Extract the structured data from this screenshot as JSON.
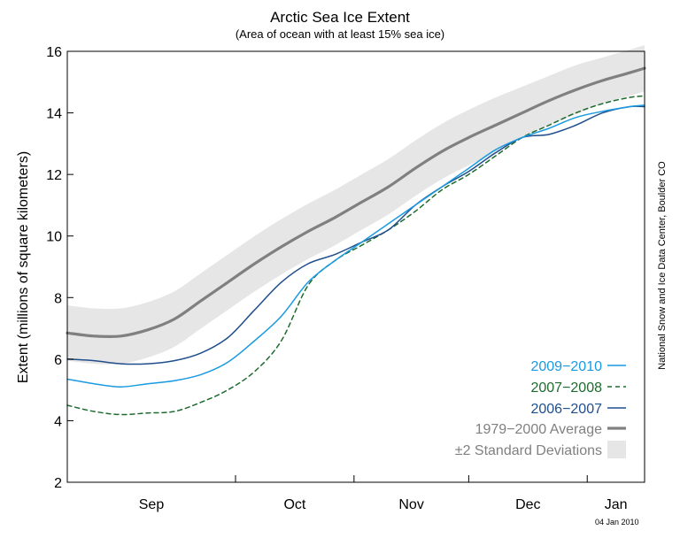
{
  "chart_data": {
    "type": "line",
    "title": "Arctic Sea Ice Extent",
    "subtitle": "(Area of ocean with at least 15% sea ice)",
    "xlabel": "",
    "ylabel": "Extent (millions of square kilometers)",
    "x_range": [
      "Aug 18",
      "Jan 16"
    ],
    "ylim": [
      2,
      16
    ],
    "y_ticks": [
      2,
      4,
      6,
      8,
      10,
      12,
      14,
      16
    ],
    "x_tick_labels": [
      "Sep",
      "Oct",
      "Nov",
      "Dec",
      "Jan"
    ],
    "x_axis_boundaries": [
      "Oct 1",
      "Nov 1",
      "Dec 1",
      "Jan 1"
    ],
    "grid": false,
    "legend_position": "bottom-right",
    "x": [
      "Aug 18",
      "Aug 25",
      "Sep 1",
      "Sep 8",
      "Sep 15",
      "Sep 22",
      "Sep 29",
      "Oct 6",
      "Oct 13",
      "Oct 20",
      "Oct 27",
      "Nov 3",
      "Nov 10",
      "Nov 17",
      "Nov 24",
      "Dec 1",
      "Dec 8",
      "Dec 15",
      "Dec 22",
      "Dec 29",
      "Jan 5",
      "Jan 12",
      "Jan 16"
    ],
    "series": [
      {
        "name": "2009−2010",
        "color": "#1a9ae0",
        "style": "solid",
        "values": [
          5.35,
          5.2,
          5.1,
          5.2,
          5.3,
          5.5,
          5.9,
          6.6,
          7.4,
          8.5,
          9.2,
          9.8,
          10.4,
          11.0,
          11.6,
          12.2,
          12.8,
          13.2,
          13.5,
          13.85,
          14.05,
          14.2,
          14.25
        ]
      },
      {
        "name": "2007−2008",
        "color": "#1e6b2e",
        "style": "dashed",
        "values": [
          4.5,
          4.3,
          4.2,
          4.25,
          4.3,
          4.6,
          5.0,
          5.6,
          6.6,
          8.4,
          9.2,
          9.7,
          10.2,
          10.8,
          11.5,
          12.0,
          12.6,
          13.2,
          13.6,
          14.0,
          14.3,
          14.5,
          14.55
        ]
      },
      {
        "name": "2006−2007",
        "color": "#1f4e8c",
        "style": "solid",
        "values": [
          6.0,
          5.95,
          5.85,
          5.85,
          5.95,
          6.2,
          6.7,
          7.6,
          8.5,
          9.1,
          9.4,
          9.8,
          10.2,
          11.0,
          11.6,
          12.1,
          12.7,
          13.2,
          13.3,
          13.6,
          14.0,
          14.2,
          14.2
        ]
      },
      {
        "name": "1979−2000 Average",
        "color": "#808080",
        "style": "solid",
        "values": [
          6.85,
          6.75,
          6.75,
          6.95,
          7.3,
          7.9,
          8.5,
          9.1,
          9.65,
          10.15,
          10.6,
          11.1,
          11.6,
          12.2,
          12.75,
          13.2,
          13.6,
          14.0,
          14.4,
          14.75,
          15.05,
          15.3,
          15.45
        ]
      }
    ],
    "band": {
      "name": "±2 Standard Deviations",
      "color": "#e6e6e6",
      "lower": [
        5.95,
        5.85,
        5.85,
        6.05,
        6.4,
        7.0,
        7.6,
        8.2,
        8.75,
        9.25,
        9.7,
        10.2,
        10.7,
        11.3,
        11.85,
        12.3,
        12.7,
        13.2,
        13.6,
        13.95,
        14.3,
        14.55,
        14.7
      ],
      "upper": [
        7.75,
        7.65,
        7.65,
        7.85,
        8.2,
        8.8,
        9.4,
        10.0,
        10.55,
        11.05,
        11.5,
        12.0,
        12.5,
        13.1,
        13.65,
        14.1,
        14.5,
        14.85,
        15.2,
        15.55,
        15.8,
        16.05,
        16.2
      ]
    }
  },
  "credit": "National Snow and Ice Data Center, Boulder CO",
  "date_stamp": "04 Jan 2010"
}
